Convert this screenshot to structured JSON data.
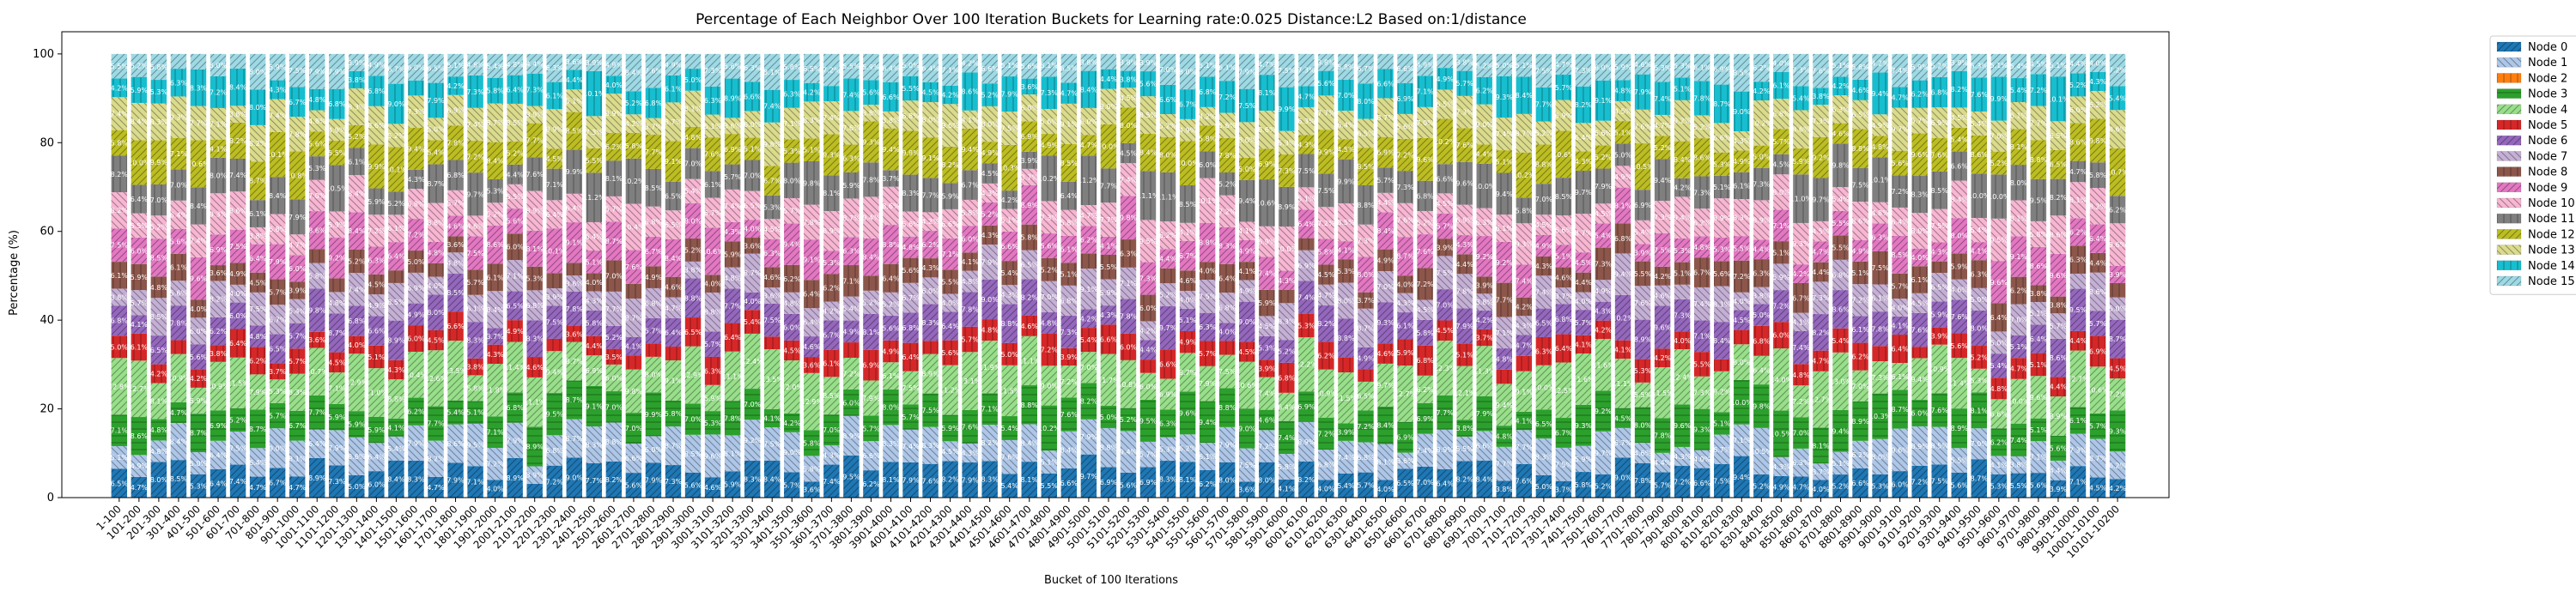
{
  "chart_data": {
    "type": "bar",
    "stacked": true,
    "title": "Percentage of Each Neighbor Over 100 Iteration Buckets for Learning rate:0.025 Distance:L2 Based on:1/distance",
    "xlabel": "Bucket of 100 Iterations",
    "ylabel": "Percentage (%)",
    "ylim": [
      0,
      105
    ],
    "yticks": [
      0,
      20,
      40,
      60,
      80,
      100
    ],
    "grid": false,
    "legend_position": "outside-top-right",
    "category_rule": {
      "first": 1,
      "last": 10101,
      "step": 100
    },
    "categories_first": "1-100",
    "categories_last": "10001-10100",
    "series": [
      {
        "name": "Node 0",
        "color": "#1f77b4",
        "hatch": "//",
        "typical_value": 6.3,
        "label_color": "#ffffff"
      },
      {
        "name": "Node 1",
        "color": "#aec7e8",
        "hatch": "\\\\",
        "typical_value": 6.9,
        "label_color": "#ffffff"
      },
      {
        "name": "Node 2",
        "color": "#ff7f0e",
        "hatch": "||",
        "typical_value": 0.0,
        "label_color": "#ffffff"
      },
      {
        "name": "Node 3",
        "color": "#2ca02c",
        "hatch": "-",
        "typical_value": 7.0,
        "label_color": "#ffffff"
      },
      {
        "name": "Node 4",
        "color": "#98df8a",
        "hatch": "//",
        "typical_value": 9.8,
        "label_color": "#ffffff"
      },
      {
        "name": "Node 5",
        "color": "#d62728",
        "hatch": "||",
        "typical_value": 4.8,
        "label_color": "#ffffff"
      },
      {
        "name": "Node 6",
        "color": "#9467bd",
        "hatch": "//",
        "typical_value": 6.5,
        "label_color": "#ffffff"
      },
      {
        "name": "Node 7",
        "color": "#c5b0d5",
        "hatch": "\\\\",
        "typical_value": 6.0,
        "label_color": "#ffffff"
      },
      {
        "name": "Node 8",
        "color": "#8c564b",
        "hatch": "||",
        "typical_value": 5.0,
        "label_color": "#ffffff"
      },
      {
        "name": "Node 9",
        "color": "#e377c2",
        "hatch": "//",
        "typical_value": 7.0,
        "label_color": "#ffffff"
      },
      {
        "name": "Node 10",
        "color": "#f7b6d2",
        "hatch": "\\\\",
        "typical_value": 7.0,
        "label_color": "#ffffff"
      },
      {
        "name": "Node 11",
        "color": "#7f7f7f",
        "hatch": "||",
        "typical_value": 7.5,
        "label_color": "#ffffff"
      },
      {
        "name": "Node 12",
        "color": "#bcbd22",
        "hatch": "//",
        "typical_value": 7.5,
        "label_color": "#ffffff"
      },
      {
        "name": "Node 13",
        "color": "#dbdb8d",
        "hatch": "\\\\",
        "typical_value": 6.5,
        "label_color": "#ffffff"
      },
      {
        "name": "Node 14",
        "color": "#17becf",
        "hatch": "||",
        "typical_value": 6.5,
        "label_color": "#ffffff"
      },
      {
        "name": "Node 15",
        "color": "#9edae5",
        "hatch": "//",
        "typical_value": 5.7,
        "label_color": "#ffffff"
      }
    ],
    "bar_label_format": "{v}%"
  }
}
